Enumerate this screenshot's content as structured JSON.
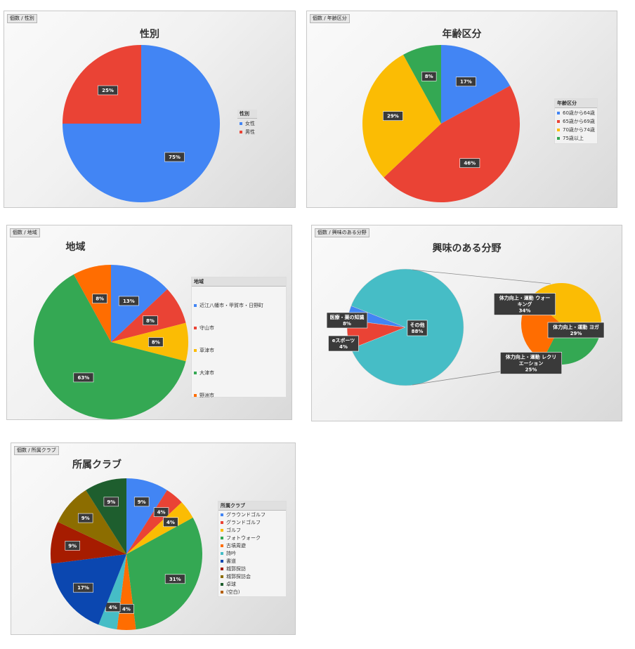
{
  "charts": [
    {
      "id": "gender",
      "tag": "個数 / 性別",
      "legend_title": "性別",
      "chart_data": {
        "type": "pie",
        "title": "性別",
        "slices": [
          {
            "label": "女性",
            "value": 75,
            "color": "#4285F4"
          },
          {
            "label": "男性",
            "value": 25,
            "color": "#EA4335"
          }
        ],
        "data_labels": [
          "75%",
          "25%"
        ],
        "legend_position": "right"
      }
    },
    {
      "id": "age",
      "tag": "個数 / 年齢区分",
      "legend_title": "年齢区分",
      "chart_data": {
        "type": "pie",
        "title": "年齢区分",
        "slices": [
          {
            "label": "60歳から64歳",
            "value": 17,
            "color": "#4285F4"
          },
          {
            "label": "65歳から69歳",
            "value": 46,
            "color": "#EA4335"
          },
          {
            "label": "70歳から74歳",
            "value": 29,
            "color": "#FBBC04"
          },
          {
            "label": "75歳以上",
            "value": 8,
            "color": "#34A853"
          }
        ],
        "data_labels": [
          "17%",
          "46%",
          "29%",
          "8%"
        ],
        "legend_position": "right"
      }
    },
    {
      "id": "region",
      "tag": "個数 / 地域",
      "legend_title": "地域",
      "chart_data": {
        "type": "pie",
        "title": "地域",
        "slices": [
          {
            "label": "近江八幡市・甲賀市・日野町",
            "value": 13,
            "color": "#4285F4"
          },
          {
            "label": "守山市",
            "value": 8,
            "color": "#EA4335"
          },
          {
            "label": "草津市",
            "value": 8,
            "color": "#FBBC04"
          },
          {
            "label": "大津市",
            "value": 63,
            "color": "#34A853"
          },
          {
            "label": "野洲市",
            "value": 8,
            "color": "#FF6D01"
          }
        ],
        "data_labels": [
          "13%",
          "8%",
          "8%",
          "63%",
          "8%"
        ],
        "legend_position": "right"
      }
    },
    {
      "id": "interest",
      "tag": "個数 / 興味のある分野",
      "chart_data": {
        "type": "pie",
        "title": "興味のある分野",
        "main_slices": [
          {
            "label": "その他",
            "value": 88,
            "color": "#46BDC6"
          },
          {
            "label": "医療・薬の知識",
            "value": 8,
            "color": "#EA4335"
          },
          {
            "label": "eスポーツ",
            "value": 4,
            "color": "#4285F4"
          }
        ],
        "sub_slices": [
          {
            "label": "体力向上・運動 ウォーキング",
            "value": 34,
            "color": "#FBBC04"
          },
          {
            "label": "体力向上・運動 ヨガ",
            "value": 29,
            "color": "#34A853"
          },
          {
            "label": "体力向上・運動 レクリエーション",
            "value": 25,
            "color": "#FF6D01"
          }
        ],
        "main_labels": [
          {
            "l1": "その他",
            "l2": "88%"
          },
          {
            "l1": "医療・薬の知識",
            "l2": "8%"
          },
          {
            "l1": "eスポーツ",
            "l2": "4%"
          }
        ],
        "sub_labels": [
          {
            "l1": "体力向上・運動 ウォー",
            "l2": "キング",
            "l3": "34%"
          },
          {
            "l1": "体力向上・運動 ヨガ",
            "l2": "29%"
          },
          {
            "l1": "体力向上・運動 レクリ",
            "l2": "エーション",
            "l3": "25%"
          }
        ]
      }
    },
    {
      "id": "club",
      "tag": "個数 / 所属クラブ",
      "legend_title": "所属クラブ",
      "chart_data": {
        "type": "pie",
        "title": "所属クラブ",
        "slices": [
          {
            "label": "グラウンドゴルフ",
            "value": 9,
            "color": "#4285F4"
          },
          {
            "label": "グランドゴルフ",
            "value": 4,
            "color": "#EA4335"
          },
          {
            "label": "ゴルフ",
            "value": 4,
            "color": "#FBBC04"
          },
          {
            "label": "フォトウォーク",
            "value": 31,
            "color": "#34A853"
          },
          {
            "label": "古墳周遊",
            "value": 4,
            "color": "#FF6D01"
          },
          {
            "label": "詩吟",
            "value": 4,
            "color": "#46BDC6"
          },
          {
            "label": "書道",
            "value": 17,
            "color": "#0B47B0"
          },
          {
            "label": "城郭探訪",
            "value": 9,
            "color": "#A61C00"
          },
          {
            "label": "城郭探訪会",
            "value": 9,
            "color": "#8C6D00"
          },
          {
            "label": "卓球",
            "value": 9,
            "color": "#1E5E2E"
          },
          {
            "label": "(空白)",
            "value": 0,
            "color": "#B45F06"
          }
        ],
        "data_labels": [
          "9%",
          "4%",
          "4%",
          "31%",
          "4%",
          "4%",
          "17%",
          "9%",
          "9%",
          "9%",
          ""
        ],
        "legend_position": "right"
      }
    }
  ]
}
